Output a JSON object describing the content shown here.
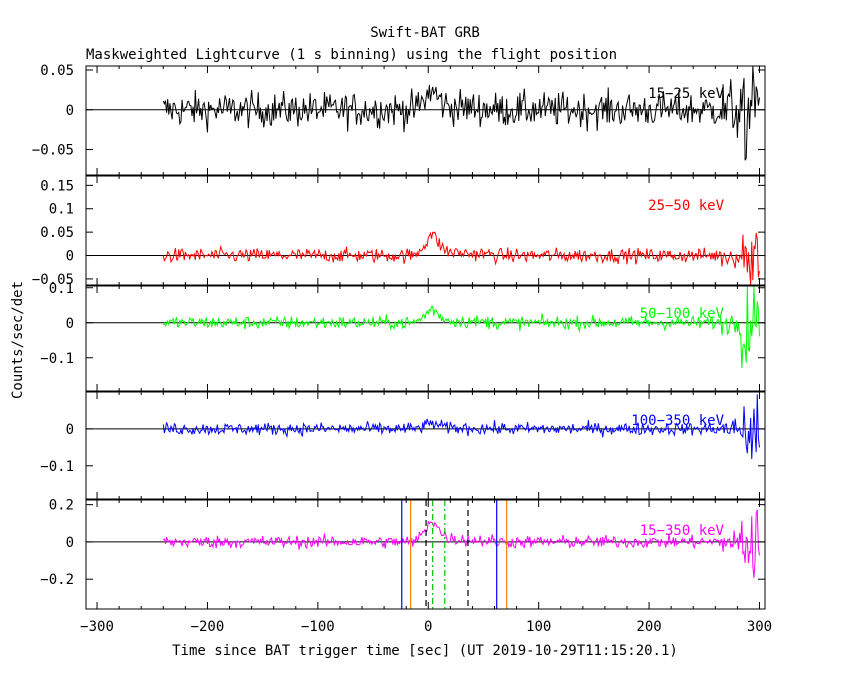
{
  "chart_data": {
    "type": "line",
    "title": "Swift-BAT GRB",
    "subtitle": "Maskweighted Lightcurve (1 s binning) using the flight position",
    "xlabel": "Time since BAT trigger time [sec] (UT 2019-10-29T11:15:20.1)",
    "ylabel": "Counts/sec/det",
    "xlim": [
      -310,
      305
    ],
    "xticks": [
      -300,
      -200,
      -100,
      0,
      100,
      200,
      300
    ],
    "xtick_labels": [
      "−300",
      "−200",
      "−100",
      "0",
      "100",
      "200",
      "300"
    ],
    "data_range": [
      -240,
      300
    ],
    "peak_time": 0,
    "panels": [
      {
        "name": "15-25 keV",
        "label": "15−25 keV",
        "color": "#000000",
        "ylim": [
          -0.082,
          0.055
        ],
        "yticks": [
          0.05,
          0,
          -0.05
        ],
        "ytick_labels": [
          "0.05",
          "0",
          "−0.05"
        ],
        "noise": 0.013,
        "peak": 0.018,
        "tail_noise": 0.03
      },
      {
        "name": "25-50 keV",
        "label": "25−50 keV",
        "color": "#ff0000",
        "ylim": [
          -0.063,
          0.17
        ],
        "yticks": [
          0.15,
          0.1,
          0.05,
          0,
          -0.05
        ],
        "ytick_labels": [
          "0.15",
          "0.1",
          "0.05",
          "0",
          "−0.05"
        ],
        "noise": 0.009,
        "peak": 0.035,
        "tail_noise": 0.04
      },
      {
        "name": "50-100 keV",
        "label": "50−100 keV",
        "color": "#00ff00",
        "ylim": [
          -0.195,
          0.105
        ],
        "yticks": [
          0.1,
          0,
          -0.1
        ],
        "ytick_labels": [
          "0.1",
          "0",
          "−0.1"
        ],
        "noise": 0.011,
        "peak": 0.03,
        "tail_noise": 0.06
      },
      {
        "name": "100-350 keV",
        "label": "100−350 keV",
        "color": "#0000ff",
        "ylim": [
          -0.19,
          0.1
        ],
        "yticks": [
          0,
          -0.1
        ],
        "ytick_labels": [
          "0",
          "−0.1"
        ],
        "noise": 0.01,
        "peak": 0.012,
        "tail_noise": 0.06
      },
      {
        "name": "15-350 keV",
        "label": "15−350 keV",
        "color": "#ff00ff",
        "ylim": [
          -0.36,
          0.225
        ],
        "yticks": [
          0.2,
          0,
          -0.2
        ],
        "ytick_labels": [
          "0.2",
          "0",
          "−0.2"
        ],
        "noise": 0.02,
        "peak": 0.09,
        "tail_noise": 0.12
      }
    ],
    "markers": [
      {
        "x": -24,
        "color": "#0000ff",
        "style": "solid"
      },
      {
        "x": -16,
        "color": "#ff8000",
        "style": "solid"
      },
      {
        "x": -2,
        "color": "#000000",
        "style": "dashed"
      },
      {
        "x": 4,
        "color": "#00c000",
        "style": "dashdot"
      },
      {
        "x": 15,
        "color": "#00c000",
        "style": "dashdot"
      },
      {
        "x": 36,
        "color": "#000000",
        "style": "dashed"
      },
      {
        "x": 62,
        "color": "#0000ff",
        "style": "solid"
      },
      {
        "x": 71,
        "color": "#ff8000",
        "style": "solid"
      }
    ]
  }
}
